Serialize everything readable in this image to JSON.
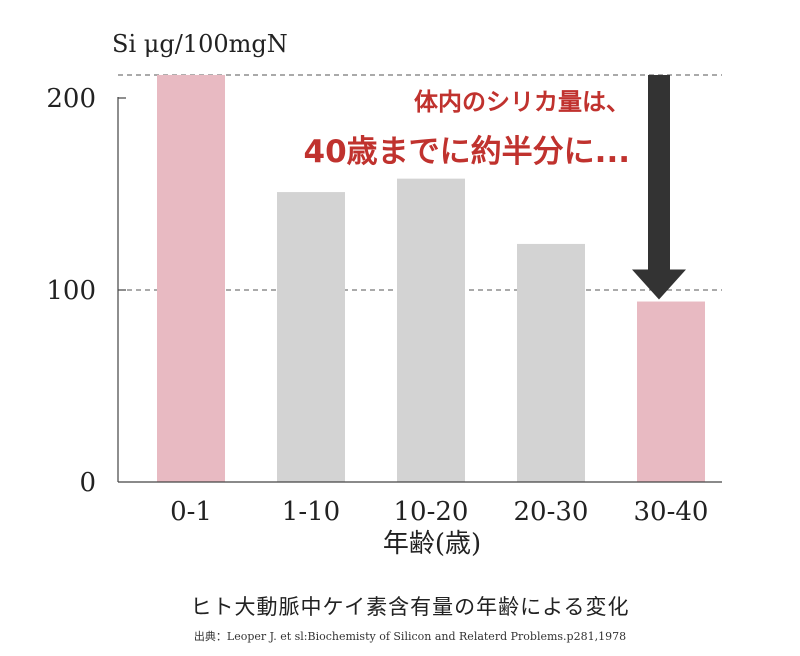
{
  "chart_data": {
    "type": "bar",
    "categories": [
      "0-1",
      "1-10",
      "10-20",
      "20-30",
      "30-40"
    ],
    "values": [
      212,
      151,
      158,
      124,
      94
    ],
    "highlight": [
      true,
      false,
      false,
      false,
      true
    ],
    "ylabel": "Si  μg/100mgN",
    "xlabel": "年齢(歳)",
    "ylim": [
      0,
      212
    ],
    "yticks": [
      0,
      100,
      200
    ],
    "reference_lines": [
      100,
      212
    ],
    "annotation_line1": "体内のシリカ量は、",
    "annotation_line2": "40歳までに約半分に...",
    "caption": "ヒト大動脈中ケイ素含有量の年齢による変化",
    "source": "出典：Leoper J. et sl:Biochemisty of Silicon and Relaterd Problems.p281,1978",
    "colors": {
      "highlight_bar": "#e8bac2",
      "normal_bar": "#d3d3d3",
      "arrow": "#333333",
      "annotation": "#c0322e"
    },
    "grid": false
  }
}
